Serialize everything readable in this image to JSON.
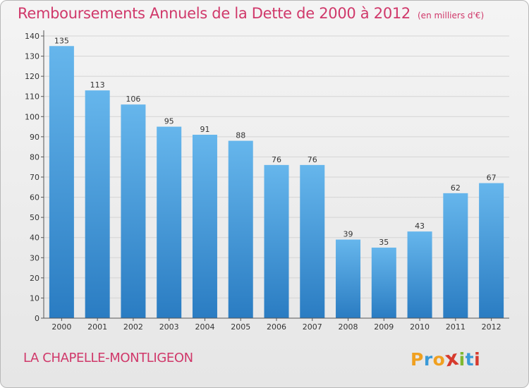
{
  "header": {
    "title": "Remboursements Annuels de la Dette de 2000 à 2012",
    "unit": "(en milliers d'€)"
  },
  "footer": {
    "commune": "LA CHAPELLE-MONTLIGEON"
  },
  "logo": {
    "letters": [
      "P",
      "r",
      "o",
      "x",
      "i",
      "t",
      "i"
    ],
    "colors": [
      "#f0a020",
      "#3a9ad8",
      "#f0a020",
      "#d63a2e",
      "#7fb830",
      "#3a9ad8",
      "#d63a2e"
    ]
  },
  "colors": {
    "bar_light": "#66b6ec",
    "bar_dark": "#2a7cc2",
    "axis": "#555555",
    "grid": "#d4d4d4"
  },
  "chart_data": {
    "type": "bar",
    "title": "Remboursements Annuels de la Dette de 2000 à 2012",
    "xlabel": "",
    "ylabel": "",
    "categories": [
      "2000",
      "2001",
      "2002",
      "2003",
      "2004",
      "2005",
      "2006",
      "2007",
      "2008",
      "2009",
      "2010",
      "2011",
      "2012"
    ],
    "values": [
      135,
      113,
      106,
      95,
      91,
      88,
      76,
      76,
      39,
      35,
      43,
      62,
      67
    ],
    "ylim": [
      0,
      140
    ],
    "yticks": [
      0,
      10,
      20,
      30,
      40,
      50,
      60,
      70,
      80,
      90,
      100,
      110,
      120,
      130,
      140
    ],
    "data_labels": [
      "135",
      "113",
      "106",
      "95",
      "91",
      "88",
      "76",
      "76",
      "39",
      "35",
      "43",
      "62",
      "67"
    ]
  }
}
